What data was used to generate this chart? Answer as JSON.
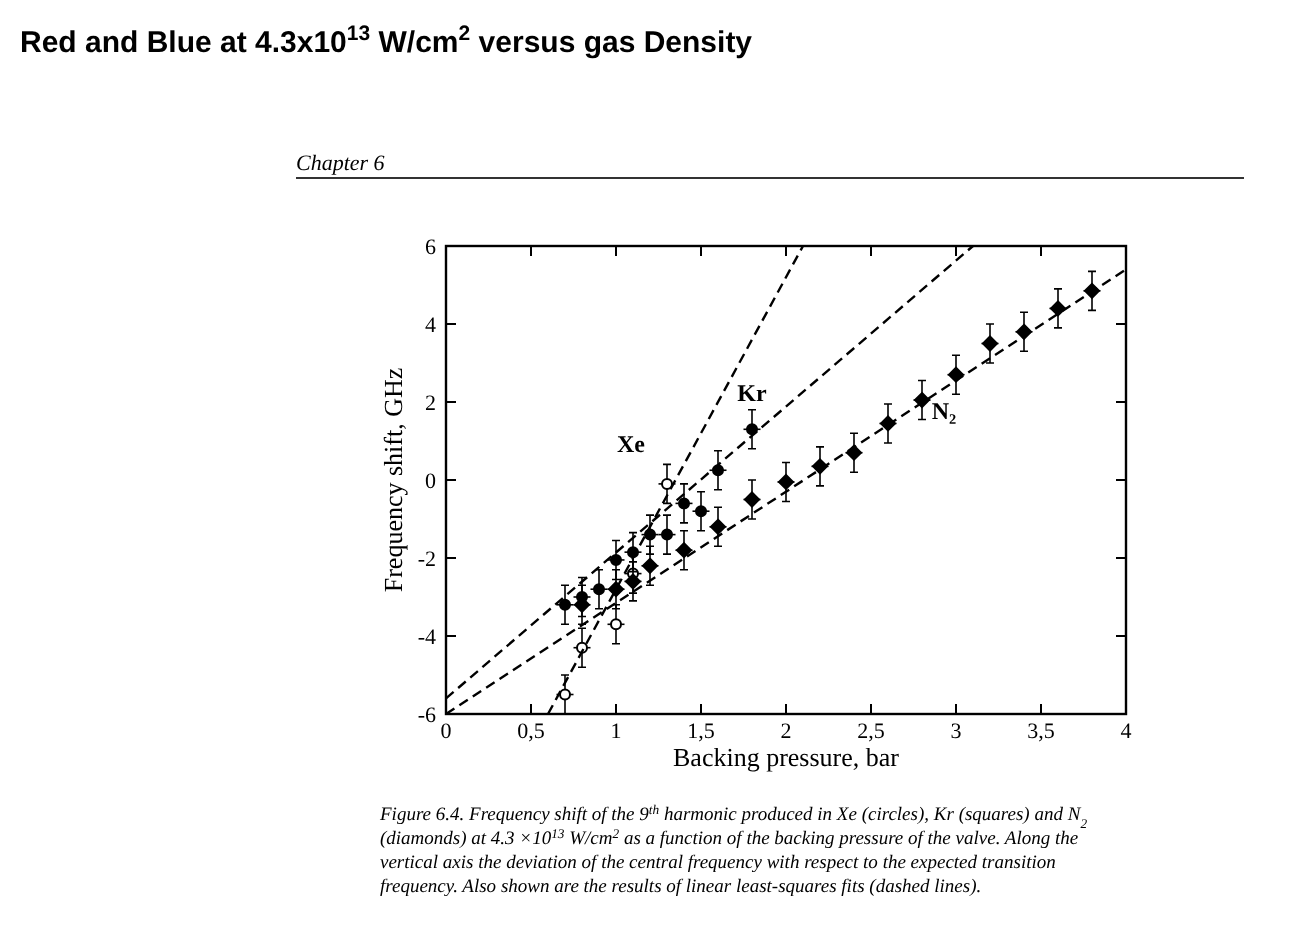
{
  "chart_data": {
    "type": "scatter",
    "title": "Red and Blue at 4.3x10$^{13}$ W/cm$^{2}$ versus gas Density",
    "xlabel": "Backing pressure, bar",
    "ylabel": "Frequency shift, GHz",
    "xlim": [
      0,
      4
    ],
    "ylim": [
      -6,
      6
    ],
    "xticks": [
      0,
      {
        "value": 0.5,
        "label": "0,5"
      },
      1,
      {
        "value": 1.5,
        "label": "1,5"
      },
      2,
      {
        "value": 2.5,
        "label": "2,5"
      },
      3,
      {
        "value": 3.5,
        "label": "3,5"
      },
      4
    ],
    "yticks": [
      -6,
      -4,
      -2,
      0,
      2,
      4,
      6
    ],
    "grid": false,
    "legend": false,
    "series": [
      {
        "name": "Xe",
        "marker": "circle",
        "color": "#ffffff",
        "x": [
          0.7,
          0.8,
          1.0,
          1.1,
          1.3
        ],
        "values": [
          -5.5,
          -4.3,
          -3.7,
          -2.4,
          -0.1
        ],
        "errors": [
          0.5,
          0.5,
          0.5,
          0.5,
          0.5
        ],
        "xerrors": [
          0.05,
          0.05,
          0.05,
          0.05,
          0.05
        ]
      },
      {
        "name": "Kr",
        "marker": "circle",
        "color": "#000000",
        "x": [
          0.7,
          0.8,
          0.9,
          1.0,
          1.1,
          1.2,
          1.3,
          1.4,
          1.5,
          1.6,
          1.8
        ],
        "values": [
          -3.2,
          -3.0,
          -2.8,
          -2.05,
          -1.85,
          -1.4,
          -1.4,
          -0.6,
          -0.8,
          0.25,
          1.3
        ],
        "errors": [
          0.5,
          0.5,
          0.5,
          0.5,
          0.5,
          0.5,
          0.5,
          0.5,
          0.5,
          0.5,
          0.5
        ],
        "xerrors": [
          0.05,
          0.05,
          0.05,
          0.05,
          0.05,
          0.05,
          0.05,
          0.05,
          0.05,
          0.05,
          0.05
        ]
      },
      {
        "name": "N₂",
        "marker": "diamond",
        "color": "#000000",
        "x": [
          0.8,
          1.0,
          1.1,
          1.2,
          1.4,
          1.6,
          1.8,
          2.0,
          2.2,
          2.4,
          2.6,
          2.8,
          3.0,
          3.2,
          3.4,
          3.6,
          3.8
        ],
        "values": [
          -3.2,
          -2.8,
          -2.6,
          -2.2,
          -1.8,
          -1.2,
          -0.5,
          -0.05,
          0.35,
          0.7,
          1.45,
          2.05,
          2.7,
          3.5,
          3.8,
          4.4,
          4.85
        ],
        "errors": [
          0.5,
          0.5,
          0.5,
          0.5,
          0.5,
          0.5,
          0.5,
          0.5,
          0.5,
          0.5,
          0.5,
          0.5,
          0.5,
          0.5,
          0.5,
          0.5,
          0.5
        ],
        "xerrors": [
          0.05,
          0.05,
          0.05,
          0.05,
          0.05,
          0.05,
          0.05,
          0.05,
          0.05,
          0.05,
          0.05,
          0.05,
          0.05,
          0.05,
          0.05,
          0.05,
          0.05
        ]
      },
      {
        "type": "line",
        "line_style": "dashed",
        "color": "#000000",
        "x": [
          0.6,
          2.1
        ],
        "values": [
          -6,
          6
        ]
      },
      {
        "type": "line",
        "line_style": "dashed",
        "color": "#000000",
        "x": [
          0,
          3.1
        ],
        "values": [
          -5.6,
          6
        ]
      },
      {
        "type": "line",
        "line_style": "dashed",
        "color": "#000000",
        "x": [
          0,
          4
        ],
        "values": [
          -6,
          5.4
        ]
      }
    ],
    "annotations": [
      "Chapter 6",
      "Figure 6.4. Frequency shift of the 9$^{th}$ harmonic produced in Xe (circles), Kr (squares) and N$_{2}$ (diamonds) at 4.3 ×10$^{13}$ W/cm$^{2}$ as a function of the backing pressure of the valve. Along the vertical axis the deviation of the central frequency with respect to the expected transition frequency. Also shown are the results of linear least-squares fits (dashed lines)."
    ]
  }
}
